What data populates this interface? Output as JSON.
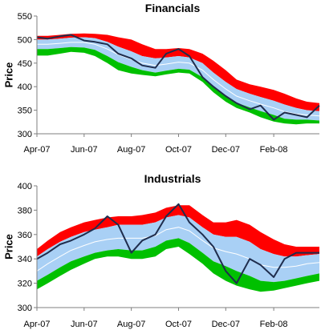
{
  "colors": {
    "upper_band": "#ff0000",
    "inner_band": "#a9d0f5",
    "lower_band": "#00c000",
    "moving_average": "#ffffff",
    "price": "#1f2d4d",
    "axis": "#7f7f7f"
  },
  "chart_data": [
    {
      "type": "area",
      "title": "Financials",
      "ylabel": "Price",
      "ylim": [
        300,
        550
      ],
      "yticks": [
        "300",
        "350",
        "400",
        "450",
        "500",
        "550"
      ],
      "xlim": [
        "2007-04-01",
        "2008-03-31"
      ],
      "xticks": [
        {
          "date": "2007-04-01",
          "label": "Apr-07"
        },
        {
          "date": "2007-06-01",
          "label": "Jun-07"
        },
        {
          "date": "2007-08-01",
          "label": "Aug-07"
        },
        {
          "date": "2007-10-01",
          "label": "Oct-07"
        },
        {
          "date": "2007-12-01",
          "label": "Dec-07"
        },
        {
          "date": "2008-02-01",
          "label": "Feb-08"
        }
      ],
      "grid": false,
      "dates": [
        "2007-04-01",
        "2007-04-15",
        "2007-05-01",
        "2007-05-15",
        "2007-06-01",
        "2007-06-15",
        "2007-07-01",
        "2007-07-15",
        "2007-08-01",
        "2007-08-15",
        "2007-09-01",
        "2007-09-15",
        "2007-10-01",
        "2007-10-15",
        "2007-11-01",
        "2007-11-15",
        "2007-12-01",
        "2007-12-15",
        "2008-01-01",
        "2008-01-15",
        "2008-02-01",
        "2008-02-15",
        "2008-03-01",
        "2008-03-15",
        "2008-03-31"
      ],
      "series": [
        {
          "role": "upper",
          "values": [
            508,
            508,
            510,
            512,
            513,
            512,
            510,
            505,
            500,
            490,
            480,
            480,
            482,
            480,
            470,
            455,
            435,
            415,
            405,
            400,
            393,
            385,
            375,
            368,
            365
          ]
        },
        {
          "role": "band_upper",
          "values": [
            500,
            500,
            502,
            504,
            505,
            503,
            495,
            485,
            475,
            465,
            460,
            462,
            465,
            462,
            450,
            430,
            410,
            395,
            385,
            378,
            370,
            362,
            355,
            350,
            348
          ]
        },
        {
          "role": "average",
          "values": [
            490,
            490,
            492,
            494,
            494,
            490,
            480,
            468,
            458,
            450,
            445,
            448,
            452,
            450,
            435,
            415,
            395,
            380,
            370,
            363,
            355,
            347,
            342,
            340,
            338
          ]
        },
        {
          "role": "band_lower",
          "values": [
            480,
            480,
            482,
            484,
            483,
            478,
            465,
            452,
            442,
            435,
            430,
            434,
            438,
            436,
            420,
            400,
            380,
            366,
            356,
            348,
            340,
            332,
            330,
            330,
            328
          ]
        },
        {
          "role": "lower",
          "values": [
            466,
            466,
            470,
            474,
            472,
            465,
            450,
            435,
            428,
            425,
            422,
            426,
            430,
            428,
            410,
            388,
            368,
            355,
            345,
            335,
            326,
            322,
            320,
            322,
            322
          ]
        },
        {
          "role": "price",
          "values": [
            505,
            502,
            507,
            510,
            498,
            495,
            490,
            470,
            460,
            445,
            440,
            470,
            480,
            465,
            420,
            400,
            380,
            365,
            352,
            360,
            330,
            345,
            340,
            335,
            360
          ]
        }
      ]
    },
    {
      "type": "area",
      "title": "Industrials",
      "ylabel": "Price",
      "ylim": [
        300,
        400
      ],
      "yticks": [
        "300",
        "320",
        "340",
        "360",
        "380",
        "400"
      ],
      "xlim": [
        "2007-04-01",
        "2008-03-31"
      ],
      "xticks": [
        {
          "date": "2007-04-01",
          "label": "Apr-07"
        },
        {
          "date": "2007-06-01",
          "label": "Jun-07"
        },
        {
          "date": "2007-08-01",
          "label": "Aug-07"
        },
        {
          "date": "2007-10-01",
          "label": "Oct-07"
        },
        {
          "date": "2007-12-01",
          "label": "Dec-07"
        },
        {
          "date": "2008-02-01",
          "label": "Feb-08"
        }
      ],
      "grid": false,
      "dates": [
        "2007-04-01",
        "2007-04-15",
        "2007-05-01",
        "2007-05-15",
        "2007-06-01",
        "2007-06-15",
        "2007-07-01",
        "2007-07-15",
        "2007-08-01",
        "2007-08-15",
        "2007-09-01",
        "2007-09-15",
        "2007-10-01",
        "2007-10-15",
        "2007-11-01",
        "2007-11-15",
        "2007-12-01",
        "2007-12-15",
        "2008-01-01",
        "2008-01-15",
        "2008-02-01",
        "2008-02-15",
        "2008-03-01",
        "2008-03-15",
        "2008-03-31"
      ],
      "series": [
        {
          "role": "upper",
          "values": [
            348,
            355,
            362,
            366,
            370,
            372,
            374,
            375,
            375,
            376,
            378,
            382,
            384,
            384,
            376,
            370,
            370,
            372,
            368,
            362,
            356,
            352,
            350,
            350,
            350
          ]
        },
        {
          "role": "band_upper",
          "values": [
            342,
            348,
            354,
            358,
            362,
            364,
            366,
            368,
            368,
            368,
            370,
            374,
            376,
            374,
            366,
            360,
            358,
            358,
            354,
            348,
            344,
            342,
            342,
            343,
            344
          ]
        },
        {
          "role": "average",
          "values": [
            330,
            336,
            342,
            347,
            351,
            354,
            356,
            357,
            357,
            357,
            359,
            364,
            366,
            363,
            355,
            349,
            346,
            344,
            340,
            335,
            333,
            333,
            334,
            336,
            337
          ]
        },
        {
          "role": "band_lower",
          "values": [
            322,
            327,
            333,
            338,
            342,
            345,
            347,
            348,
            347,
            347,
            350,
            355,
            357,
            353,
            345,
            338,
            334,
            330,
            326,
            322,
            321,
            322,
            324,
            326,
            328
          ]
        },
        {
          "role": "lower",
          "values": [
            315,
            320,
            326,
            331,
            336,
            340,
            342,
            342,
            340,
            340,
            342,
            348,
            350,
            344,
            336,
            328,
            322,
            318,
            315,
            313,
            314,
            316,
            318,
            320,
            322
          ]
        },
        {
          "role": "price",
          "values": [
            340,
            345,
            352,
            355,
            360,
            365,
            375,
            368,
            345,
            355,
            360,
            375,
            385,
            370,
            360,
            350,
            330,
            320,
            340,
            335,
            325,
            340,
            345,
            345,
            345
          ]
        }
      ]
    }
  ]
}
